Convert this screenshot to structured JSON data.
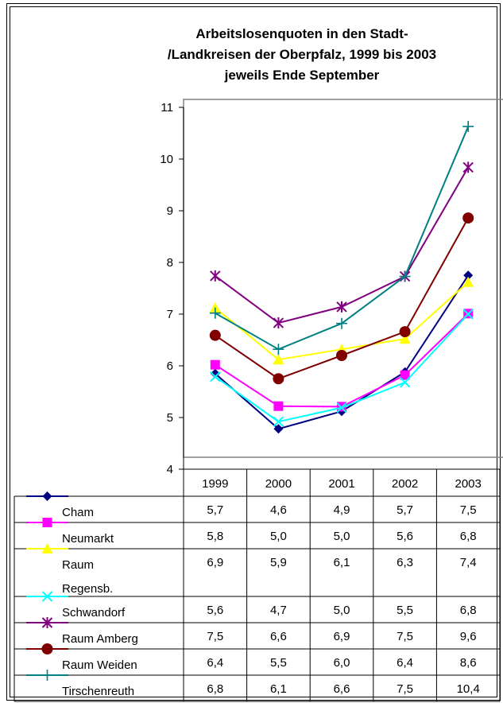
{
  "chart_data": {
    "type": "line",
    "title_lines": [
      "Arbeitslosenquoten in den Stadt-",
      "/Landkreisen der Oberpfalz, 1999 bis 2003",
      "jeweils Ende September"
    ],
    "categories": [
      "1999",
      "2000",
      "2001",
      "2002",
      "2003"
    ],
    "ylim": [
      4,
      11
    ],
    "yticks": [
      "4",
      "5",
      "6",
      "7",
      "8",
      "9",
      "10",
      "11"
    ],
    "grid": false,
    "legend": "data-table",
    "series": [
      {
        "name": "Cham",
        "name_lines": [
          "Cham"
        ],
        "color": "#000080",
        "marker": "diamond",
        "values": [
          5.85,
          4.78,
          5.12,
          5.88,
          7.75
        ],
        "labels": [
          "5,7",
          "4,6",
          "4,9",
          "5,7",
          "7,5"
        ]
      },
      {
        "name": "Neumarkt",
        "name_lines": [
          "Neumarkt"
        ],
        "color": "#ff00ff",
        "marker": "square",
        "values": [
          6.02,
          5.22,
          5.21,
          5.82,
          7.01
        ],
        "labels": [
          "5,8",
          "5,0",
          "5,0",
          "5,6",
          "6,8"
        ]
      },
      {
        "name": "Raum Regensb.",
        "name_lines": [
          "Raum",
          "Regensb."
        ],
        "color": "#ffff00",
        "marker": "triangle",
        "values": [
          7.12,
          6.12,
          6.32,
          6.52,
          7.62
        ],
        "labels": [
          "6,9",
          "5,9",
          "6,1",
          "6,3",
          "7,4"
        ]
      },
      {
        "name": "Schwandorf",
        "name_lines": [
          "Schwandorf"
        ],
        "color": "#00ffff",
        "marker": "x",
        "values": [
          5.79,
          4.92,
          5.19,
          5.68,
          7.0
        ],
        "labels": [
          "5,6",
          "4,7",
          "5,0",
          "5,5",
          "6,8"
        ]
      },
      {
        "name": "Raum Amberg",
        "name_lines": [
          "Raum Amberg"
        ],
        "color": "#800080",
        "marker": "star",
        "values": [
          7.74,
          6.83,
          7.14,
          7.73,
          9.84
        ],
        "labels": [
          "7,5",
          "6,6",
          "6,9",
          "7,5",
          "9,6"
        ]
      },
      {
        "name": "Raum Weiden",
        "name_lines": [
          "Raum Weiden"
        ],
        "color": "#800000",
        "marker": "circle",
        "values": [
          6.59,
          5.75,
          6.2,
          6.66,
          8.86
        ],
        "labels": [
          "6,4",
          "5,5",
          "6,0",
          "6,4",
          "8,6"
        ]
      },
      {
        "name": "Tirschenreuth",
        "name_lines": [
          "Tirschenreuth"
        ],
        "color": "#008080",
        "marker": "plus",
        "values": [
          7.02,
          6.32,
          6.82,
          7.73,
          10.63
        ],
        "labels": [
          "6,8",
          "6,1",
          "6,6",
          "7,5",
          "10,4"
        ]
      }
    ]
  }
}
